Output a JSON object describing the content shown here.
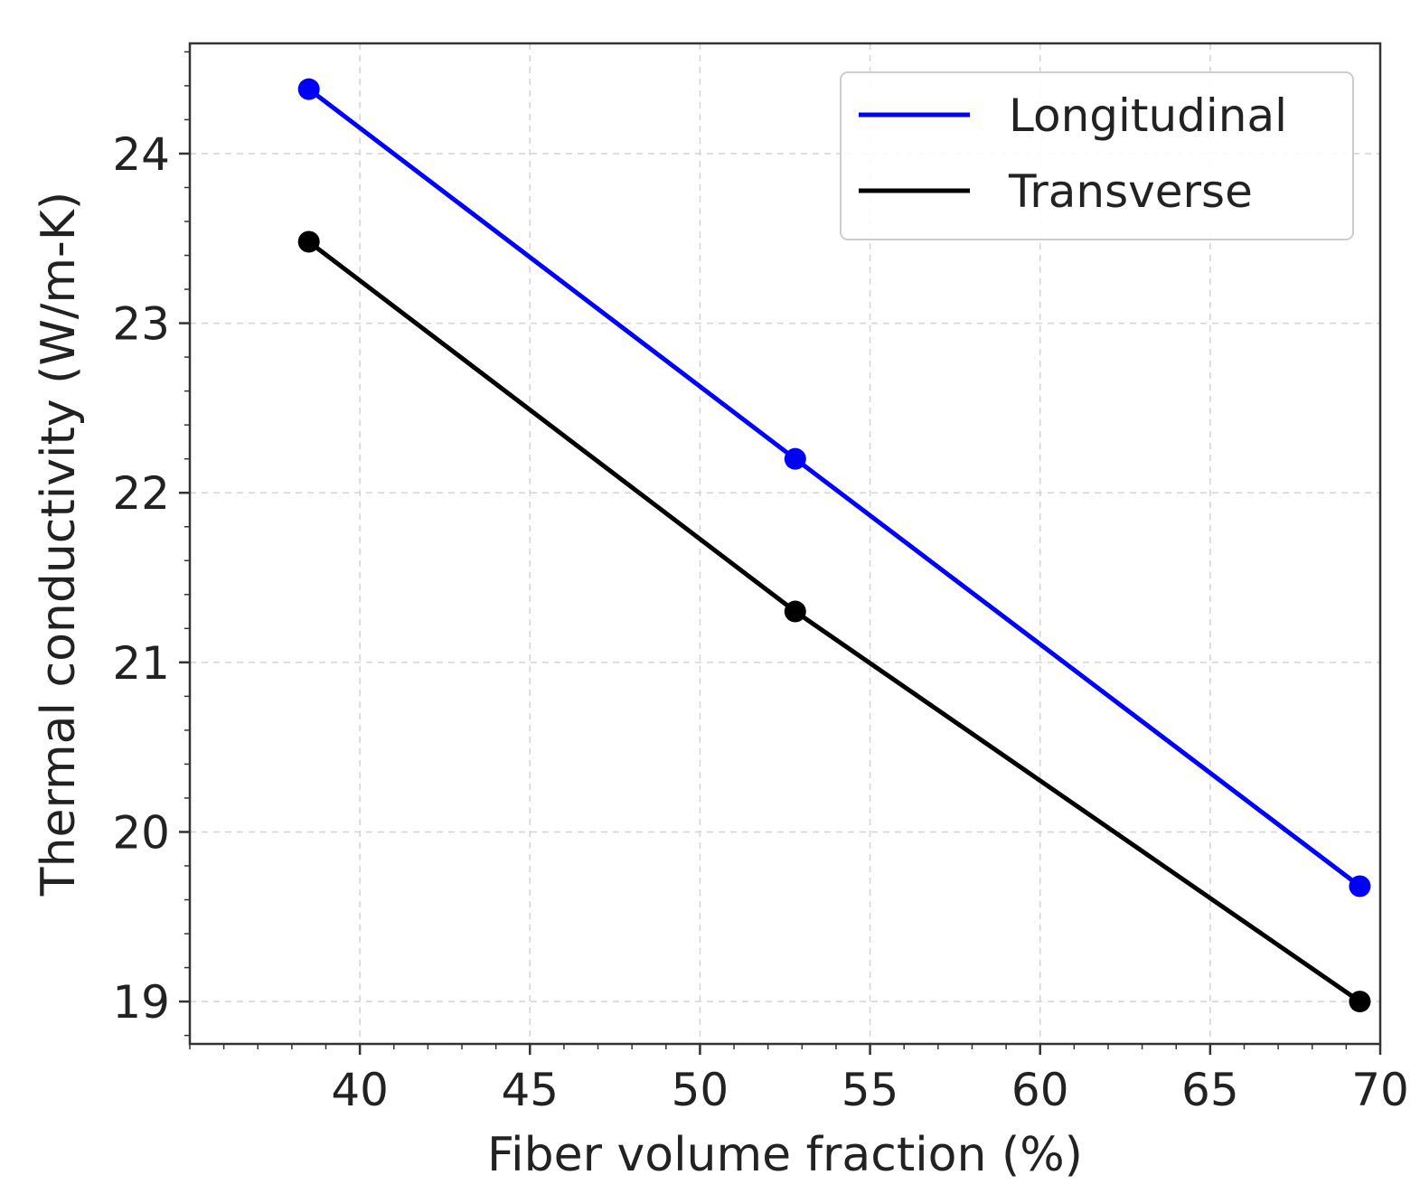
{
  "chart_data": {
    "type": "line",
    "title": "",
    "xlabel": "Fiber volume fraction (%)",
    "ylabel": "Thermal conductivity (W/m-K)",
    "xlim": [
      35,
      70
    ],
    "ylim": [
      18.75,
      24.65
    ],
    "xticks": [
      40,
      45,
      50,
      55,
      60,
      65,
      70
    ],
    "yticks": [
      19,
      20,
      21,
      22,
      23,
      24
    ],
    "xtick_labels": [
      "40",
      "45",
      "50",
      "55",
      "60",
      "65",
      "70"
    ],
    "ytick_labels": [
      "19",
      "20",
      "21",
      "22",
      "23",
      "24"
    ],
    "grid": true,
    "legend_position": "top-right",
    "series": [
      {
        "name": "Longitudinal",
        "color": "#0000ff",
        "x": [
          38.5,
          52.8,
          69.4
        ],
        "y": [
          24.38,
          22.2,
          19.68
        ]
      },
      {
        "name": "Transverse",
        "color": "#000000",
        "x": [
          38.5,
          52.8,
          69.4
        ],
        "y": [
          23.48,
          21.3,
          19.0
        ]
      }
    ]
  }
}
